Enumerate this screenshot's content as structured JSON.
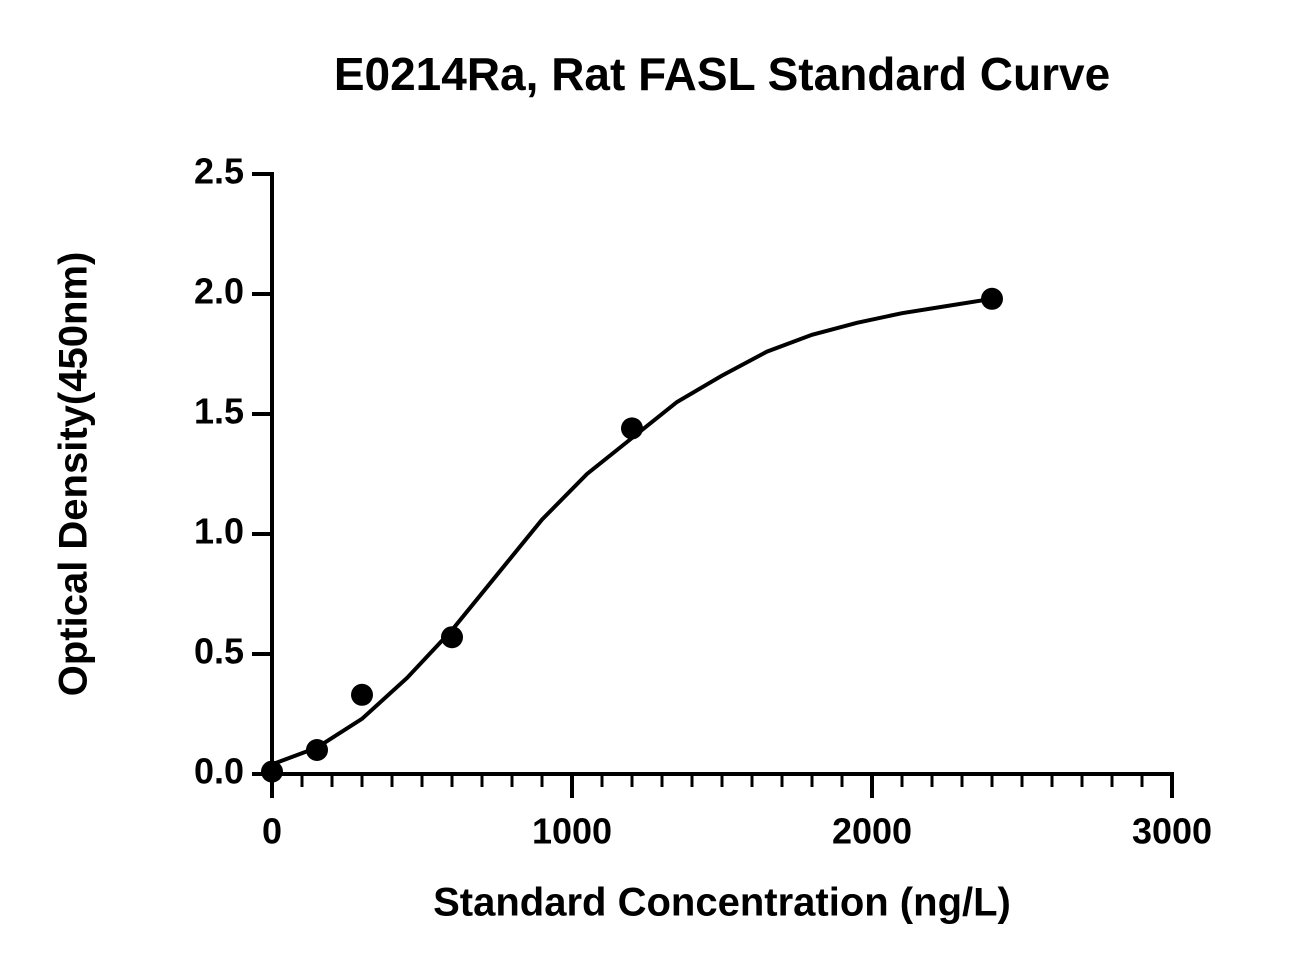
{
  "chart_data": {
    "type": "scatter",
    "title": "E0214Ra, Rat FASL Standard Curve",
    "x_label": "Standard Concentration (ng/L)",
    "y_label": "Optical Density(450nm)",
    "xlim": [
      0,
      3000
    ],
    "xticks": [
      0,
      1000,
      2000,
      3000
    ],
    "xminorticks": [
      100,
      200,
      300,
      400,
      500,
      600,
      700,
      800,
      900,
      1100,
      1200,
      1300,
      1400,
      1500,
      1600,
      1700,
      1800,
      1900,
      2100,
      2200,
      2300,
      2400,
      2500,
      2600,
      2700,
      2800,
      2900
    ],
    "ylim": [
      0,
      2.5
    ],
    "yticks": [
      {
        "value": 0,
        "label": "0.0"
      },
      0.5,
      {
        "value": 1,
        "label": "1.0"
      },
      1.5,
      {
        "value": 2,
        "label": "2.0"
      },
      2.5
    ],
    "color": "#000000",
    "points": {
      "x": [
        0,
        150,
        300,
        600,
        1200,
        2400
      ],
      "values": [
        0.01,
        0.1,
        0.33,
        0.57,
        1.44,
        1.98
      ]
    },
    "fit": {
      "x": [
        0,
        150,
        300,
        450,
        600,
        750,
        900,
        1050,
        1200,
        1350,
        1500,
        1650,
        1800,
        1950,
        2100,
        2250,
        2400
      ],
      "values": [
        0.04,
        0.11,
        0.23,
        0.4,
        0.6,
        0.83,
        1.06,
        1.25,
        1.4,
        1.55,
        1.66,
        1.76,
        1.83,
        1.88,
        1.92,
        1.95,
        1.98
      ]
    }
  }
}
